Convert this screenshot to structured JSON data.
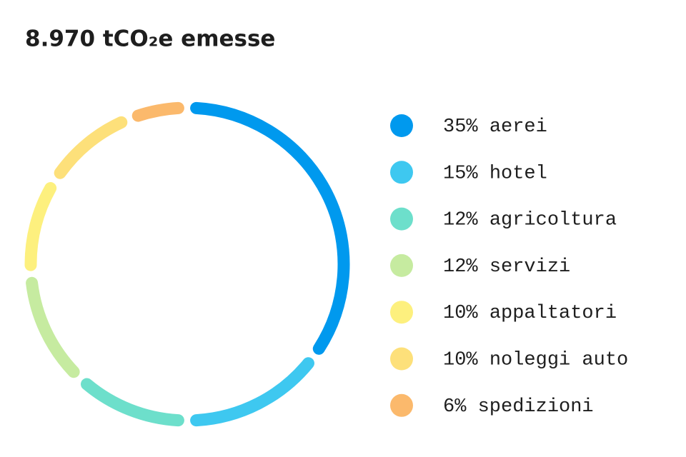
{
  "chart_data": {
    "type": "donut",
    "title": "8.970 tCO₂e emesse",
    "categories": [
      "aerei",
      "hotel",
      "agricoltura",
      "servizi",
      "appaltatori",
      "noleggi auto",
      "spedizioni"
    ],
    "values": [
      35,
      15,
      12,
      12,
      10,
      10,
      6
    ],
    "value_labels": [
      "35%",
      "15%",
      "12%",
      "12%",
      "10%",
      "10%",
      "6%"
    ],
    "colors": [
      "#0099ee",
      "#3ec8f0",
      "#6ddfcb",
      "#c6eba0",
      "#fdf07e",
      "#fde07a",
      "#fbb96c"
    ]
  }
}
